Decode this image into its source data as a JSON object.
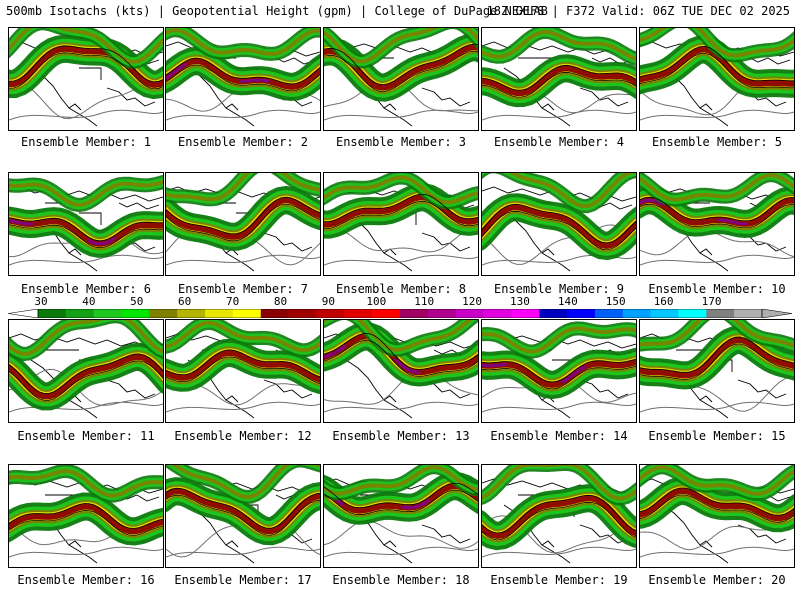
{
  "header": {
    "title_left": "500mb Isotachs (kts) | Geopotential Height (gpm) | College of DuPage NEXLAB",
    "title_right": "18Z GEFS | F372 Valid: 06Z TUE DEC 02 2025"
  },
  "members": [
    {
      "caption": "Ensemble Member: 1"
    },
    {
      "caption": "Ensemble Member: 2"
    },
    {
      "caption": "Ensemble Member: 3"
    },
    {
      "caption": "Ensemble Member: 4"
    },
    {
      "caption": "Ensemble Member: 5"
    },
    {
      "caption": "Ensemble Member: 6"
    },
    {
      "caption": "Ensemble Member: 7"
    },
    {
      "caption": "Ensemble Member: 8"
    },
    {
      "caption": "Ensemble Member: 9"
    },
    {
      "caption": "Ensemble Member: 10"
    },
    {
      "caption": "Ensemble Member: 11"
    },
    {
      "caption": "Ensemble Member: 12"
    },
    {
      "caption": "Ensemble Member: 13"
    },
    {
      "caption": "Ensemble Member: 14"
    },
    {
      "caption": "Ensemble Member: 15"
    },
    {
      "caption": "Ensemble Member: 16"
    },
    {
      "caption": "Ensemble Member: 17"
    },
    {
      "caption": "Ensemble Member: 18"
    },
    {
      "caption": "Ensemble Member: 19"
    },
    {
      "caption": "Ensemble Member: 20"
    }
  ],
  "colorbar": {
    "labels": [
      "30",
      "40",
      "50",
      "60",
      "70",
      "80",
      "90",
      "100",
      "110",
      "120",
      "130",
      "140",
      "150",
      "160",
      "170"
    ],
    "colors": [
      "#0a7a0a",
      "#14a014",
      "#1ec81e",
      "#00e600",
      "#808000",
      "#b4b400",
      "#e6e600",
      "#ffff00",
      "#8b0000",
      "#a00000",
      "#c00000",
      "#e00000",
      "#ff0000",
      "#a00060",
      "#b00090",
      "#c800c8",
      "#e000e0",
      "#ff00ff",
      "#0000c0",
      "#0000ff",
      "#0060ff",
      "#00a0ff",
      "#00c8ff",
      "#00ffff",
      "#808080",
      "#b0b0b0"
    ]
  },
  "palette": {
    "green_dark": "#0a7a0a",
    "green": "#1ec81e",
    "olive": "#808000",
    "yellow": "#e6e600",
    "darkred": "#8b0000",
    "red": "#e00000",
    "purple": "#800080"
  }
}
